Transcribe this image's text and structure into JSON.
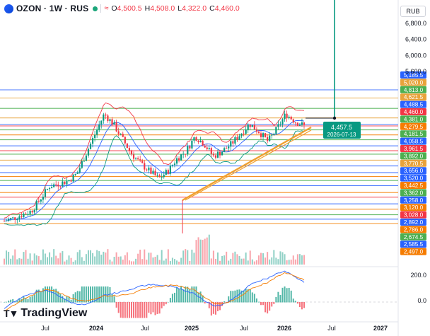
{
  "header": {
    "symbol": "OZON · 1W · RUS",
    "open_label": "O",
    "open": "4,500.5",
    "high_label": "H",
    "high": "4,508.0",
    "low_label": "L",
    "low": "4,322.0",
    "close_label": "C",
    "close": "4,460.0",
    "currency": "RUB"
  },
  "branding": {
    "logo_text": "TradingView"
  },
  "price_scale": {
    "plain_ticks": [
      "6,800.0",
      "6,400.0",
      "6,000.0",
      "5,600.0"
    ],
    "level_labels": [
      {
        "value": 5185.5,
        "label": "5,185.5",
        "color": "#2962ff"
      },
      {
        "value": 5020.0,
        "label": "5,020.0",
        "color": "#e8a33b"
      },
      {
        "value": 4813.0,
        "label": "4,813.0",
        "color": "#4caf50"
      },
      {
        "value": 4621.5,
        "label": "4,621.5",
        "color": "#e8a33b"
      },
      {
        "value": 4488.5,
        "label": "4,488.5",
        "color": "#2962ff"
      },
      {
        "value": 4460.0,
        "label": "4,460.0",
        "color": "#f23645"
      },
      {
        "value": 4381.0,
        "label": "4,381.0",
        "color": "#4caf50"
      },
      {
        "value": 4279.5,
        "label": "4,279.5",
        "color": "#f57c00"
      },
      {
        "value": 4181.5,
        "label": "4,181.5",
        "color": "#4caf50"
      },
      {
        "value": 4058.5,
        "label": "4,058.5",
        "color": "#2962ff"
      },
      {
        "value": 3961.5,
        "label": "3,961.5",
        "color": "#f23645"
      },
      {
        "value": 3892.0,
        "label": "3,892.0",
        "color": "#4caf50"
      },
      {
        "value": 3770.5,
        "label": "3,770.5",
        "color": "#e8a33b"
      },
      {
        "value": 3656.0,
        "label": "3,656.0",
        "color": "#2962ff"
      },
      {
        "value": 3520.0,
        "label": "3,520.0",
        "color": "#2962ff"
      },
      {
        "value": 3442.5,
        "label": "3,442.5",
        "color": "#f57c00"
      },
      {
        "value": 3362.0,
        "label": "3,362.0",
        "color": "#4caf50"
      },
      {
        "value": 3258.0,
        "label": "3,258.0",
        "color": "#2962ff"
      },
      {
        "value": 3120.0,
        "label": "3,120.0",
        "color": "#f57c00"
      },
      {
        "value": 3028.0,
        "label": "3,028.0",
        "color": "#f23645"
      },
      {
        "value": 2892.0,
        "label": "2,892.0",
        "color": "#2962ff"
      },
      {
        "value": 2786.0,
        "label": "2,786.0",
        "color": "#f57c00"
      },
      {
        "value": 2674.5,
        "label": "2,674.5",
        "color": "#4caf50"
      },
      {
        "value": 2585.5,
        "label": "2,585.5",
        "color": "#2962ff"
      },
      {
        "value": 2497.0,
        "label": "2,497.0",
        "color": "#f57c00"
      }
    ]
  },
  "forecast_marker": {
    "value": "4,457.5",
    "date": "2026-07-13",
    "color": "#089981"
  },
  "oscillator_scale": [
    "200.0",
    "0.0"
  ],
  "time_axis": [
    "Jul",
    "2024",
    "Jul",
    "2025",
    "Jul",
    "2026",
    "Jul",
    "2027"
  ],
  "chart_data": {
    "type": "candlestick",
    "interval": "1W",
    "price_axis_range": [
      2450,
      7000
    ],
    "close_series": [
      {
        "x": "2023-04",
        "y": 2550
      },
      {
        "x": "2023-05",
        "y": 2600
      },
      {
        "x": "2023-06",
        "y": 2680
      },
      {
        "x": "2023-07",
        "y": 2750
      },
      {
        "x": "2023-08",
        "y": 3000
      },
      {
        "x": "2023-09",
        "y": 3250
      },
      {
        "x": "2023-10",
        "y": 3300
      },
      {
        "x": "2023-11",
        "y": 3350
      },
      {
        "x": "2023-12",
        "y": 3500
      },
      {
        "x": "2024-01",
        "y": 3900
      },
      {
        "x": "2024-02",
        "y": 4300
      },
      {
        "x": "2024-03",
        "y": 4700
      },
      {
        "x": "2024-04",
        "y": 4500
      },
      {
        "x": "2024-05",
        "y": 4200
      },
      {
        "x": "2024-06",
        "y": 3900
      },
      {
        "x": "2024-07",
        "y": 3700
      },
      {
        "x": "2024-08",
        "y": 3550
      },
      {
        "x": "2024-09",
        "y": 3400
      },
      {
        "x": "2024-10",
        "y": 3550
      },
      {
        "x": "2024-11",
        "y": 3800
      },
      {
        "x": "2024-12",
        "y": 3950
      },
      {
        "x": "2025-01",
        "y": 4250
      },
      {
        "x": "2025-02",
        "y": 4100
      },
      {
        "x": "2025-03",
        "y": 3850
      },
      {
        "x": "2025-04",
        "y": 3950
      },
      {
        "x": "2025-05",
        "y": 4100
      },
      {
        "x": "2025-06",
        "y": 4300
      },
      {
        "x": "2025-07",
        "y": 4500
      },
      {
        "x": "2025-08",
        "y": 4350
      },
      {
        "x": "2025-09",
        "y": 4150
      },
      {
        "x": "2025-10",
        "y": 4400
      },
      {
        "x": "2025-11",
        "y": 4700
      },
      {
        "x": "2025-12",
        "y": 4550
      },
      {
        "x": "2026-01",
        "y": 4460
      }
    ],
    "horizontal_levels": [
      5185.5,
      5020.0,
      4813.0,
      4621.5,
      4488.5,
      4460.0,
      4381.0,
      4279.5,
      4181.5,
      4058.5,
      3961.5,
      3892.0,
      3770.5,
      3656.0,
      3520.0,
      3442.5,
      3362.0,
      3258.0,
      3120.0,
      3028.0,
      2892.0,
      2786.0,
      2674.5,
      2585.5,
      2497.0
    ],
    "indicators": [
      "Bollinger Bands",
      "Volume",
      "MACD"
    ]
  }
}
